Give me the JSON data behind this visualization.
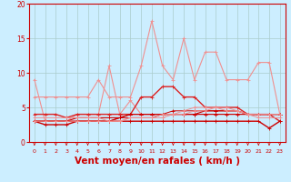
{
  "x": [
    0,
    1,
    2,
    3,
    4,
    5,
    6,
    7,
    8,
    9,
    10,
    11,
    12,
    13,
    14,
    15,
    16,
    17,
    18,
    19,
    20,
    21,
    22,
    23
  ],
  "series": [
    {
      "y": [
        9,
        3,
        3,
        3,
        4,
        4,
        4,
        11,
        4,
        6,
        4,
        4,
        4,
        4,
        4,
        4,
        4,
        4,
        4,
        4,
        4,
        4,
        4,
        4
      ],
      "color": "#f09090",
      "lw": 0.8,
      "marker": "+"
    },
    {
      "y": [
        6.5,
        6.5,
        6.5,
        6.5,
        6.5,
        6.5,
        9,
        6.5,
        6.5,
        6.5,
        11,
        17.5,
        11,
        9,
        15,
        9,
        13,
        13,
        9,
        9,
        9,
        11.5,
        11.5,
        4
      ],
      "color": "#f09090",
      "lw": 0.8,
      "marker": "+"
    },
    {
      "y": [
        4,
        4,
        4,
        3.5,
        4,
        4,
        4,
        4,
        4,
        4,
        6.5,
        6.5,
        8,
        8,
        6.5,
        6.5,
        5,
        5,
        5,
        5,
        4,
        4,
        4,
        3
      ],
      "color": "#dd2222",
      "lw": 1.0,
      "marker": "+"
    },
    {
      "y": [
        3,
        2.5,
        2.5,
        2.5,
        3,
        3,
        3,
        3,
        3,
        3,
        3,
        3,
        3,
        3,
        3,
        3,
        3,
        3,
        3,
        3,
        3,
        3,
        2,
        3
      ],
      "color": "#cc0000",
      "lw": 1.0,
      "marker": "+"
    },
    {
      "y": [
        3,
        3,
        3,
        3,
        3,
        3,
        3,
        3,
        3.5,
        4,
        4,
        4,
        4,
        4,
        4,
        4,
        4,
        4,
        4,
        4,
        4,
        4,
        4,
        4
      ],
      "color": "#cc0000",
      "lw": 0.8,
      "marker": "+"
    },
    {
      "y": [
        3,
        3,
        3,
        3,
        3.5,
        3.5,
        3.5,
        3.5,
        3.5,
        4,
        4,
        4,
        4,
        4,
        4,
        4,
        4.5,
        4.5,
        4.5,
        4.5,
        4,
        4,
        4,
        4
      ],
      "color": "#cc0000",
      "lw": 0.8,
      "marker": "+"
    },
    {
      "y": [
        3,
        3,
        3,
        3,
        3,
        3,
        3,
        3,
        3.5,
        3.5,
        3.5,
        3.5,
        4,
        4.5,
        4.5,
        4.5,
        4.5,
        4.5,
        4.5,
        4.5,
        4,
        4,
        4,
        4
      ],
      "color": "#cc0000",
      "lw": 0.7,
      "marker": "+"
    },
    {
      "y": [
        3.5,
        3.5,
        3.5,
        3.5,
        3.5,
        3.5,
        3.5,
        3,
        3,
        3.5,
        3.5,
        3.5,
        3.5,
        4,
        4,
        4.5,
        4.5,
        5,
        5,
        4.5,
        4,
        4,
        4,
        4
      ],
      "color": "#f09090",
      "lw": 0.7,
      "marker": "+"
    },
    {
      "y": [
        3,
        3,
        3,
        3,
        3,
        3,
        3,
        3,
        3,
        3.5,
        3.5,
        3.5,
        4,
        4,
        4.5,
        5,
        5,
        5,
        4.5,
        4.5,
        4,
        3.5,
        3.5,
        3.5
      ],
      "color": "#f09090",
      "lw": 0.7,
      "marker": "+"
    }
  ],
  "xlabel": "Vent moyen/en rafales ( km/h )",
  "xlim_min": -0.5,
  "xlim_max": 23.5,
  "ylim": [
    0,
    20
  ],
  "yticks": [
    0,
    5,
    10,
    15,
    20
  ],
  "xticks": [
    0,
    1,
    2,
    3,
    4,
    5,
    6,
    7,
    8,
    9,
    10,
    11,
    12,
    13,
    14,
    15,
    16,
    17,
    18,
    19,
    20,
    21,
    22,
    23
  ],
  "background_color": "#cceeff",
  "grid_color": "#aacccc",
  "xlabel_color": "#cc0000",
  "tick_color": "#cc0000",
  "spine_color": "#cc0000",
  "arrow_color": "#cc0000"
}
